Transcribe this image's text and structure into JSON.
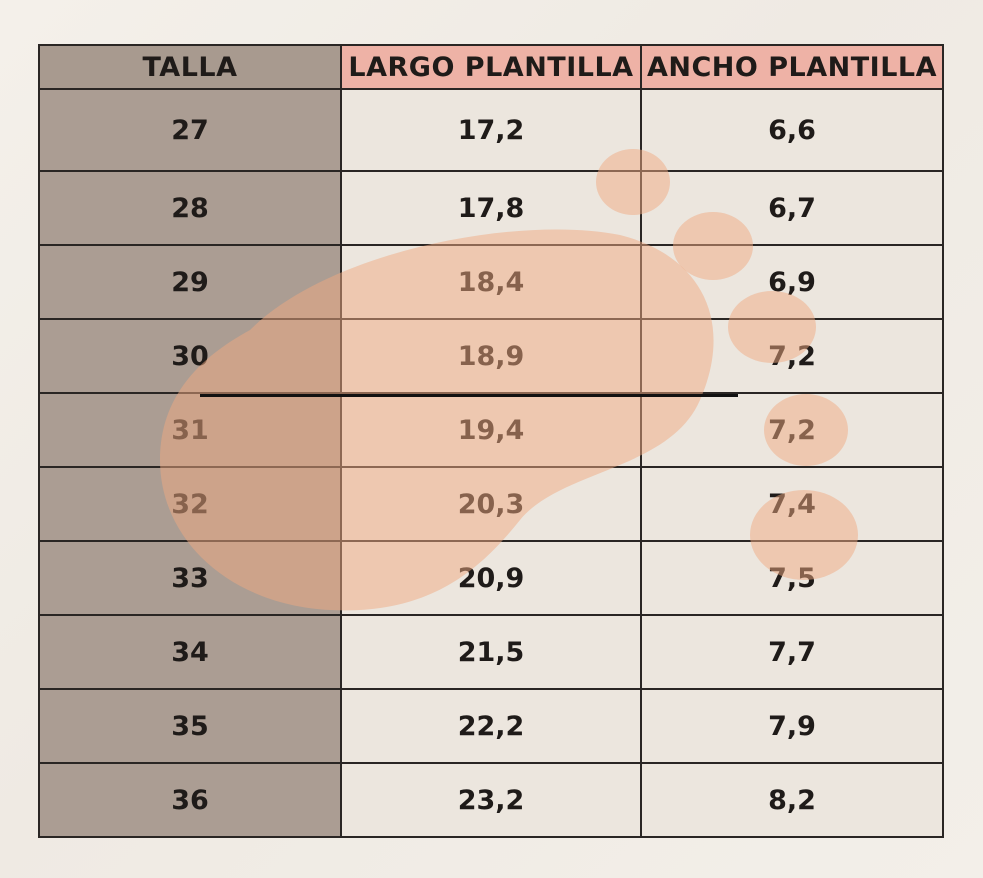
{
  "table": {
    "headers": {
      "size": "TALLA",
      "length": "LARGO PLANTILLA",
      "width": "ANCHO PLANTILLA"
    },
    "rows": [
      {
        "size": "27",
        "length": "17,2",
        "width": "6,6"
      },
      {
        "size": "28",
        "length": "17,8",
        "width": "6,7"
      },
      {
        "size": "29",
        "length": "18,4",
        "width": "6,9"
      },
      {
        "size": "30",
        "length": "18,9",
        "width": "7,2"
      },
      {
        "size": "31",
        "length": "19,4",
        "width": "7,2"
      },
      {
        "size": "32",
        "length": "20,3",
        "width": "7,4"
      },
      {
        "size": "33",
        "length": "20,9",
        "width": "7,5"
      },
      {
        "size": "34",
        "length": "21,5",
        "width": "7,7"
      },
      {
        "size": "35",
        "length": "22,2",
        "width": "7,9"
      },
      {
        "size": "36",
        "length": "23,2",
        "width": "8,2"
      }
    ]
  },
  "colors": {
    "size_column": "#ab9d93",
    "header_accent": "#eeb2a6",
    "cell_background": "#ece6de",
    "watermark": "#f0a982",
    "border": "#2a2624"
  },
  "watermark_icon": "footprint-icon"
}
